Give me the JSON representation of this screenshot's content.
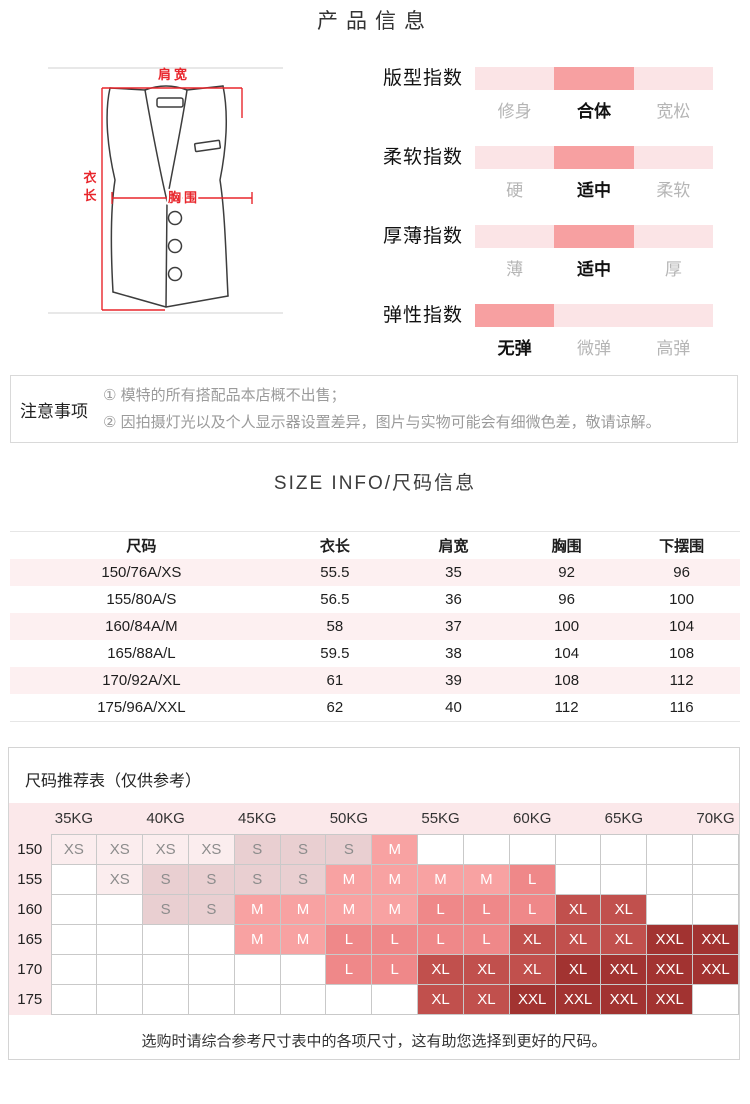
{
  "page_title": "产品信息",
  "colors": {
    "accent": "#f7a0a1",
    "bar_light": "#fbe4e6",
    "row_pink": "#fdf0f1",
    "head_pink": "#fbe8ea",
    "cell_xs": "#fbedee",
    "cell_s": "#e9cfd1",
    "cell_m": "#f8a2a2",
    "cell_l": "#ef8889",
    "cell_xl": "#c1504d",
    "cell_xxl": "#a23331",
    "diagram_red": "#e8262c"
  },
  "diagram": {
    "shoulder_label": "肩宽",
    "length_label": "衣长",
    "chest_label": "胸围"
  },
  "indexes": [
    {
      "title": "版型指数",
      "options": [
        "修身",
        "合体",
        "宽松"
      ],
      "active": 1
    },
    {
      "title": "柔软指数",
      "options": [
        "硬",
        "适中",
        "柔软"
      ],
      "active": 1
    },
    {
      "title": "厚薄指数",
      "options": [
        "薄",
        "适中",
        "厚"
      ],
      "active": 1
    },
    {
      "title": "弹性指数",
      "options": [
        "无弹",
        "微弹",
        "高弹"
      ],
      "active": 0
    }
  ],
  "notes": {
    "label": "注意事项",
    "items": [
      "① 模特的所有搭配品本店概不出售；",
      "② 因拍摄灯光以及个人显示器设置差异，图片与实物可能会有细微色差，敬请谅解。"
    ]
  },
  "size_info": {
    "title": "SIZE INFO/尺码信息",
    "headers": [
      "尺码",
      "衣长",
      "肩宽",
      "胸围",
      "下摆围"
    ],
    "rows": [
      [
        "150/76A/XS",
        "55.5",
        "35",
        "92",
        "96"
      ],
      [
        "155/80A/S",
        "56.5",
        "36",
        "96",
        "100"
      ],
      [
        "160/84A/M",
        "58",
        "37",
        "100",
        "104"
      ],
      [
        "165/88A/L",
        "59.5",
        "38",
        "104",
        "108"
      ],
      [
        "170/92A/XL",
        "61",
        "39",
        "108",
        "112"
      ],
      [
        "175/96A/XXL",
        "62",
        "40",
        "112",
        "116"
      ]
    ]
  },
  "recommend": {
    "title": "尺码推荐表（仅供参考）",
    "weights": [
      "35KG",
      "40KG",
      "45KG",
      "50KG",
      "55KG",
      "60KG",
      "65KG",
      "70KG"
    ],
    "heights": [
      "150",
      "155",
      "160",
      "165",
      "170",
      "175"
    ],
    "grid": [
      [
        "XS",
        "XS",
        "XS",
        "XS",
        "S",
        "S",
        "S",
        "M",
        "",
        "",
        "",
        "",
        "",
        "",
        ""
      ],
      [
        "",
        "XS",
        "S",
        "S",
        "S",
        "S",
        "M",
        "M",
        "M",
        "M",
        "L",
        "",
        "",
        "",
        ""
      ],
      [
        "",
        "",
        "S",
        "S",
        "M",
        "M",
        "M",
        "M",
        "L",
        "L",
        "L",
        "XL",
        "XL",
        "",
        ""
      ],
      [
        "",
        "",
        "",
        "",
        "M",
        "M",
        "L",
        "L",
        "L",
        "L",
        "XL",
        "XL",
        "XL",
        "XXL",
        "XXL"
      ],
      [
        "",
        "",
        "",
        "",
        "",
        "",
        "L",
        "L",
        "XL",
        "XL",
        "XL",
        "XL*",
        "XXL",
        "XXL",
        "XXL"
      ],
      [
        "",
        "",
        "",
        "",
        "",
        "",
        "",
        "",
        "XL",
        "XL",
        "XXL",
        "XXL",
        "XXL",
        "XXL",
        ""
      ]
    ],
    "caption": "选购时请综合参考尺寸表中的各项尺寸，这有助您选择到更好的尺码。"
  }
}
